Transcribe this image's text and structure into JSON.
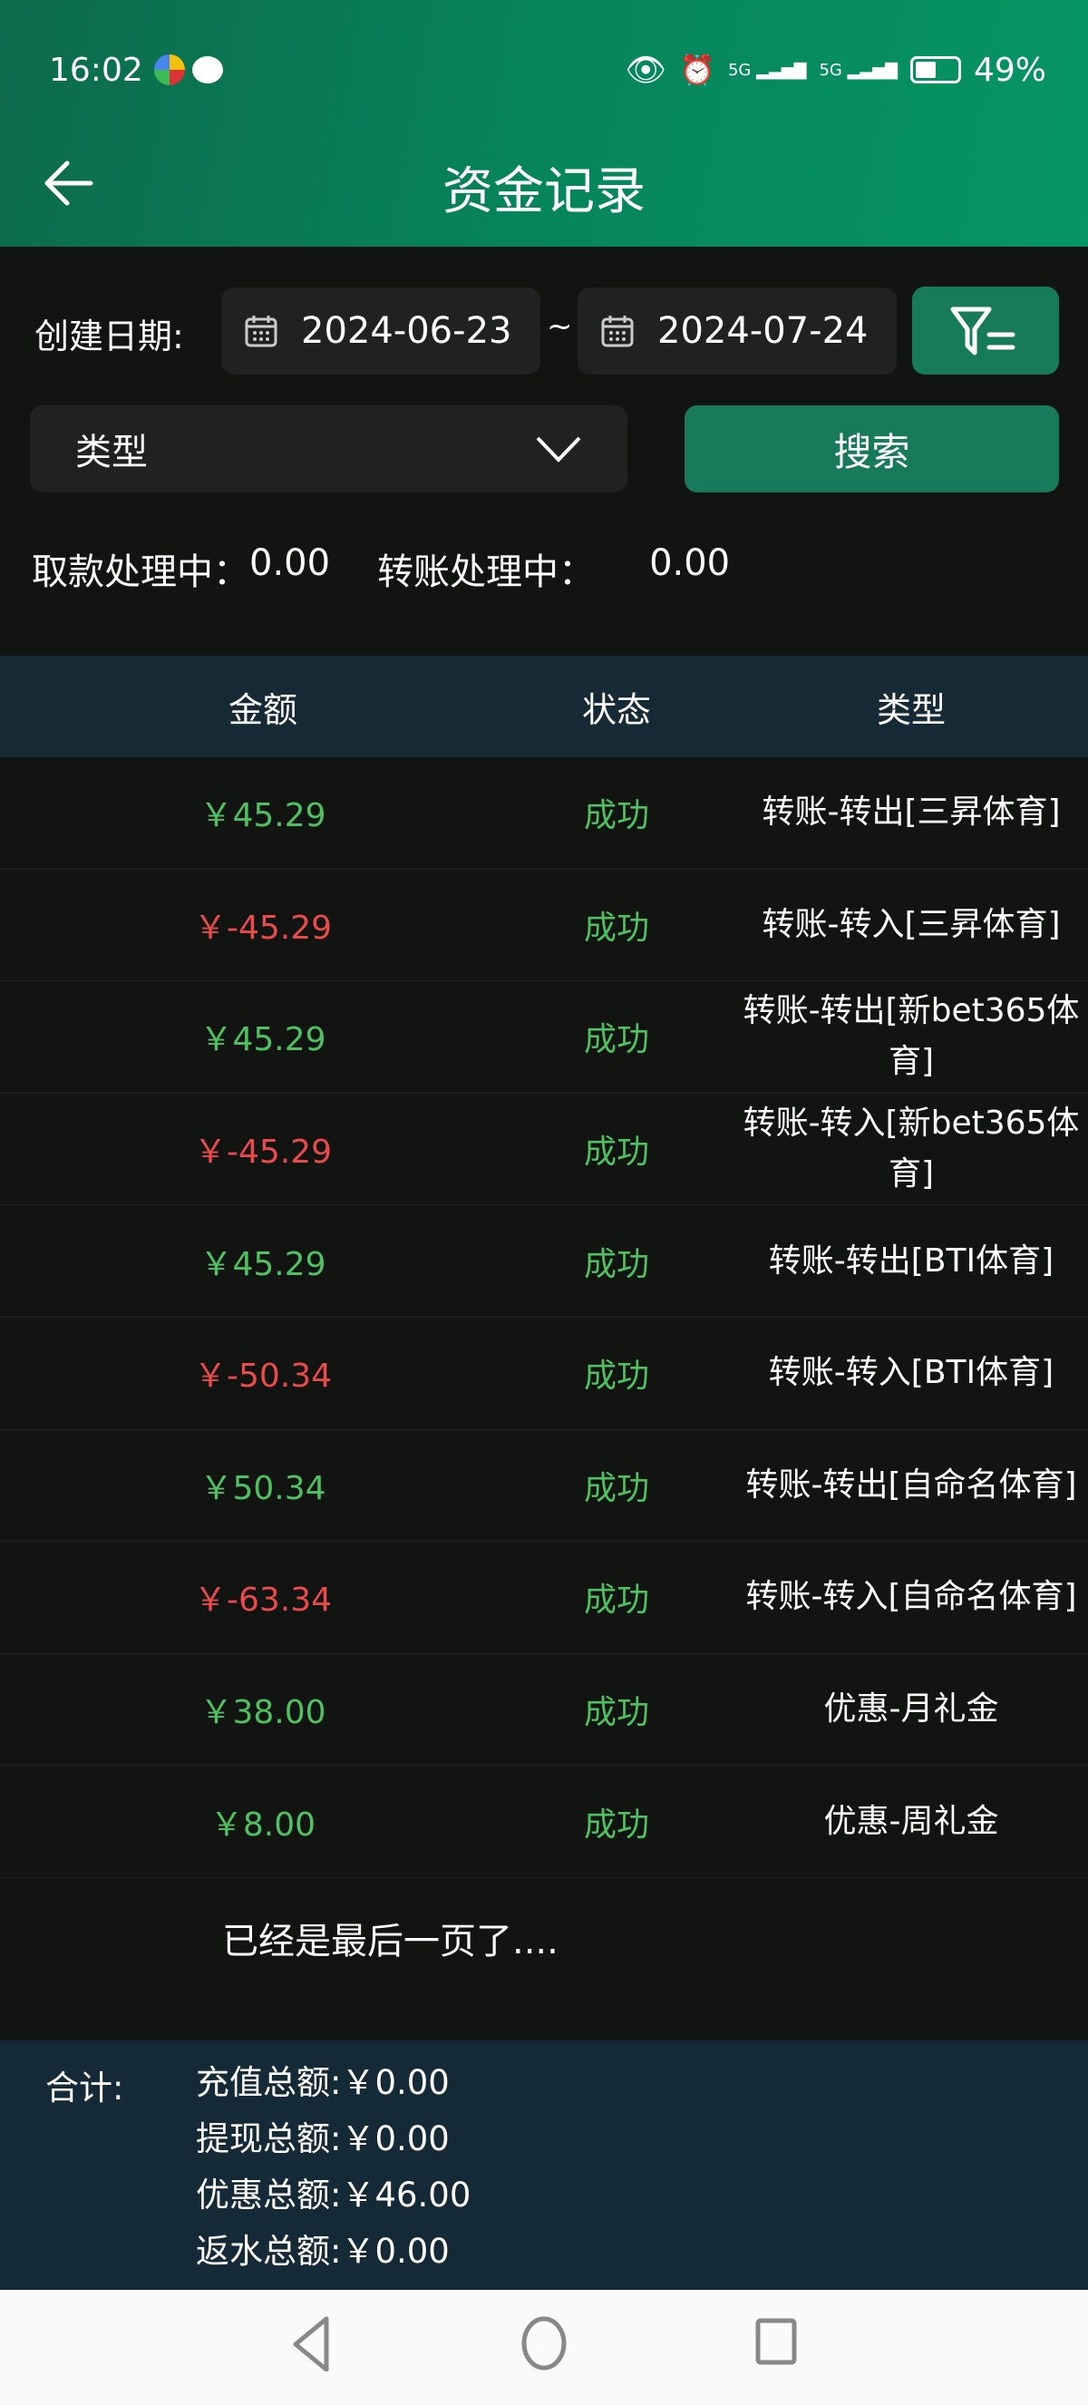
{
  "status_bar": {
    "time": "16:02",
    "battery": "49%",
    "network_1": "5G",
    "network_2": "5G"
  },
  "header": {
    "title": "资金记录"
  },
  "filters": {
    "date_label": "创建日期:",
    "start_date": "2024-06-23",
    "separator": "~",
    "end_date": "2024-07-24",
    "type_placeholder": "类型",
    "search_label": "搜索"
  },
  "pending": {
    "withdraw_label": "取款处理中：",
    "withdraw_value": "0.00",
    "transfer_label": "转账处理中：",
    "transfer_value": "0.00"
  },
  "table": {
    "columns": [
      "金额",
      "状态",
      "类型"
    ],
    "rows": [
      {
        "amount": "￥45.29",
        "sign": "pos",
        "status": "成功",
        "type": "转账-转出[三昇体育]"
      },
      {
        "amount": "￥-45.29",
        "sign": "neg",
        "status": "成功",
        "type": "转账-转入[三昇体育]"
      },
      {
        "amount": "￥45.29",
        "sign": "pos",
        "status": "成功",
        "type": "转账-转出[新bet365体育]"
      },
      {
        "amount": "￥-45.29",
        "sign": "neg",
        "status": "成功",
        "type": "转账-转入[新bet365体育]"
      },
      {
        "amount": "￥45.29",
        "sign": "pos",
        "status": "成功",
        "type": "转账-转出[BTI体育]"
      },
      {
        "amount": "￥-50.34",
        "sign": "neg",
        "status": "成功",
        "type": "转账-转入[BTI体育]"
      },
      {
        "amount": "￥50.34",
        "sign": "pos",
        "status": "成功",
        "type": "转账-转出[自命名体育]"
      },
      {
        "amount": "￥-63.34",
        "sign": "neg",
        "status": "成功",
        "type": "转账-转入[自命名体育]"
      },
      {
        "amount": "￥38.00",
        "sign": "pos",
        "status": "成功",
        "type": "优惠-月礼金"
      },
      {
        "amount": "￥8.00",
        "sign": "pos",
        "status": "成功",
        "type": "优惠-周礼金"
      }
    ],
    "end_text": "已经是最后一页了...."
  },
  "summary": {
    "label": "合计:",
    "items": [
      {
        "label": "充值总额:",
        "value": "￥0.00"
      },
      {
        "label": "提现总额:",
        "value": "￥0.00"
      },
      {
        "label": "优惠总额:",
        "value": "￥46.00"
      },
      {
        "label": "返水总额:",
        "value": "￥0.00"
      }
    ]
  },
  "colors": {
    "header_green": "#06855a",
    "button_green": "#177a5a",
    "positive": "#4fc160",
    "negative": "#ea4a4a",
    "table_header_bg": "#152a35"
  }
}
